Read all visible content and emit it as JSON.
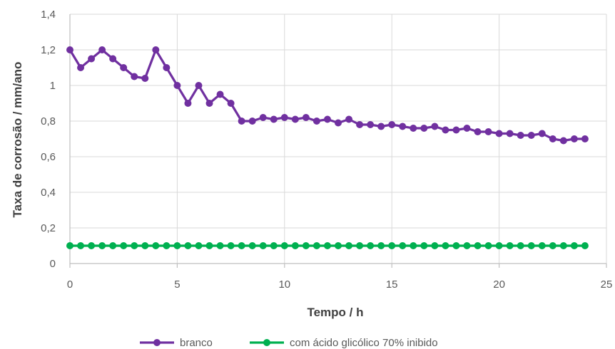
{
  "chart_data": {
    "type": "line",
    "title": "",
    "xlabel": "Tempo / h",
    "ylabel": "Taxa de corrosão / mm/ano",
    "xlim": [
      0,
      25
    ],
    "ylim": [
      0,
      1.4
    ],
    "xticks": [
      "0",
      "5",
      "10",
      "15",
      "20",
      "25"
    ],
    "yticks": [
      "0",
      "0,2",
      "0,4",
      "0,6",
      "0,8",
      "1",
      "1,2",
      "1,4"
    ],
    "grid": true,
    "legend_position": "bottom",
    "x": [
      0,
      0.5,
      1,
      1.5,
      2,
      2.5,
      3,
      3.5,
      4,
      4.5,
      5,
      5.5,
      6,
      6.5,
      7,
      7.5,
      8,
      8.5,
      9,
      9.5,
      10,
      10.5,
      11,
      11.5,
      12,
      12.5,
      13,
      13.5,
      14,
      14.5,
      15,
      15.5,
      16,
      16.5,
      17,
      17.5,
      18,
      18.5,
      19,
      19.5,
      20,
      20.5,
      21,
      21.5,
      22,
      22.5,
      23,
      23.5,
      24
    ],
    "series": [
      {
        "name": "branco",
        "color": "#7030a0",
        "values": [
          1.2,
          1.1,
          1.15,
          1.2,
          1.15,
          1.1,
          1.05,
          1.04,
          1.2,
          1.1,
          1.0,
          0.9,
          1.0,
          0.9,
          0.95,
          0.9,
          0.8,
          0.8,
          0.82,
          0.81,
          0.82,
          0.81,
          0.82,
          0.8,
          0.81,
          0.79,
          0.81,
          0.78,
          0.78,
          0.77,
          0.78,
          0.77,
          0.76,
          0.76,
          0.77,
          0.75,
          0.75,
          0.76,
          0.74,
          0.74,
          0.73,
          0.73,
          0.72,
          0.72,
          0.73,
          0.7,
          0.69,
          0.7,
          0.7
        ]
      },
      {
        "name": "com ácido glicólico 70% inibido",
        "color": "#00b050",
        "values": [
          0.1,
          0.1,
          0.1,
          0.1,
          0.1,
          0.1,
          0.1,
          0.1,
          0.1,
          0.1,
          0.1,
          0.1,
          0.1,
          0.1,
          0.1,
          0.1,
          0.1,
          0.1,
          0.1,
          0.1,
          0.1,
          0.1,
          0.1,
          0.1,
          0.1,
          0.1,
          0.1,
          0.1,
          0.1,
          0.1,
          0.1,
          0.1,
          0.1,
          0.1,
          0.1,
          0.1,
          0.1,
          0.1,
          0.1,
          0.1,
          0.1,
          0.1,
          0.1,
          0.1,
          0.1,
          0.1,
          0.1,
          0.1,
          0.1
        ]
      }
    ]
  }
}
